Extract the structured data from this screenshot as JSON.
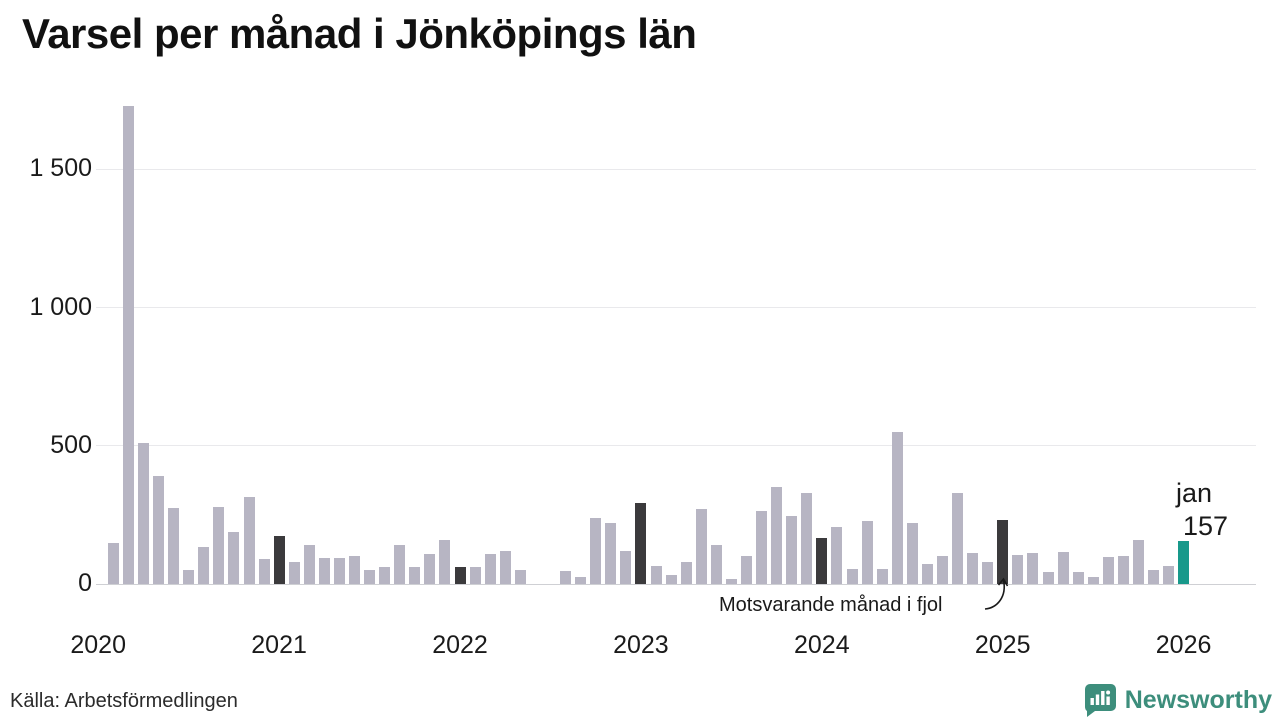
{
  "title": "Varsel per månad i Jönköpings län",
  "footer": {
    "source": "Källa: Arbetsförmedlingen"
  },
  "branding": {
    "name": "Newsworthy",
    "color": "#3d8e7c"
  },
  "annotation": {
    "text": "Motsvarande månad i fjol"
  },
  "last_point_label": {
    "line1": "jan",
    "line2": "157"
  },
  "colors": {
    "bar": "#b7b5c3",
    "bar_prev_jan": "#3b3a3c",
    "bar_current": "#18998b",
    "grid": "#e9e9ec",
    "axis": "#cfd0d4",
    "text": "#1a1a1a"
  },
  "chart_data": {
    "type": "bar",
    "title": "Varsel per månad i Jönköpings län",
    "xlabel": "",
    "ylabel": "",
    "ylim": [
      0,
      1750
    ],
    "grid": true,
    "yticks": [
      {
        "value": 0,
        "label": "0"
      },
      {
        "value": 500,
        "label": "500"
      },
      {
        "value": 1000,
        "label": "1 000"
      },
      {
        "value": 1500,
        "label": "1 500"
      }
    ],
    "x_axis_years": [
      {
        "label": "2020",
        "i": -1
      },
      {
        "label": "2021",
        "i": 11
      },
      {
        "label": "2022",
        "i": 23
      },
      {
        "label": "2023",
        "i": 35
      },
      {
        "label": "2024",
        "i": 47
      },
      {
        "label": "2025",
        "i": 59
      },
      {
        "label": "2026",
        "i": 71
      }
    ],
    "highlight_legend": "Motsvarande månad i fjol",
    "months": [
      {
        "m": "2020-02",
        "v": 150
      },
      {
        "m": "2020-03",
        "v": 1730
      },
      {
        "m": "2020-04",
        "v": 510
      },
      {
        "m": "2020-05",
        "v": 390
      },
      {
        "m": "2020-06",
        "v": 275
      },
      {
        "m": "2020-07",
        "v": 50
      },
      {
        "m": "2020-08",
        "v": 135
      },
      {
        "m": "2020-09",
        "v": 280
      },
      {
        "m": "2020-10",
        "v": 190
      },
      {
        "m": "2020-11",
        "v": 315
      },
      {
        "m": "2020-12",
        "v": 90
      },
      {
        "m": "2021-01",
        "v": 175,
        "hl": "dark"
      },
      {
        "m": "2021-02",
        "v": 80
      },
      {
        "m": "2021-03",
        "v": 140
      },
      {
        "m": "2021-04",
        "v": 95
      },
      {
        "m": "2021-05",
        "v": 95
      },
      {
        "m": "2021-06",
        "v": 100
      },
      {
        "m": "2021-07",
        "v": 50
      },
      {
        "m": "2021-08",
        "v": 60
      },
      {
        "m": "2021-09",
        "v": 140
      },
      {
        "m": "2021-10",
        "v": 60
      },
      {
        "m": "2021-11",
        "v": 110
      },
      {
        "m": "2021-12",
        "v": 160
      },
      {
        "m": "2022-01",
        "v": 60,
        "hl": "dark"
      },
      {
        "m": "2022-02",
        "v": 62
      },
      {
        "m": "2022-03",
        "v": 110
      },
      {
        "m": "2022-04",
        "v": 120
      },
      {
        "m": "2022-05",
        "v": 50
      },
      {
        "m": "2022-06",
        "v": 0
      },
      {
        "m": "2022-07",
        "v": 0
      },
      {
        "m": "2022-08",
        "v": 48
      },
      {
        "m": "2022-09",
        "v": 27
      },
      {
        "m": "2022-10",
        "v": 240
      },
      {
        "m": "2022-11",
        "v": 220
      },
      {
        "m": "2022-12",
        "v": 120
      },
      {
        "m": "2023-01",
        "v": 292,
        "hl": "dark"
      },
      {
        "m": "2023-02",
        "v": 65
      },
      {
        "m": "2023-03",
        "v": 33
      },
      {
        "m": "2023-04",
        "v": 80
      },
      {
        "m": "2023-05",
        "v": 272
      },
      {
        "m": "2023-06",
        "v": 140
      },
      {
        "m": "2023-07",
        "v": 17
      },
      {
        "m": "2023-08",
        "v": 100
      },
      {
        "m": "2023-09",
        "v": 265
      },
      {
        "m": "2023-10",
        "v": 350
      },
      {
        "m": "2023-11",
        "v": 245
      },
      {
        "m": "2023-12",
        "v": 330
      },
      {
        "m": "2024-01",
        "v": 167,
        "hl": "dark"
      },
      {
        "m": "2024-02",
        "v": 205
      },
      {
        "m": "2024-03",
        "v": 56
      },
      {
        "m": "2024-04",
        "v": 227
      },
      {
        "m": "2024-05",
        "v": 56
      },
      {
        "m": "2024-06",
        "v": 550
      },
      {
        "m": "2024-07",
        "v": 220
      },
      {
        "m": "2024-08",
        "v": 72
      },
      {
        "m": "2024-09",
        "v": 102
      },
      {
        "m": "2024-10",
        "v": 330
      },
      {
        "m": "2024-11",
        "v": 113
      },
      {
        "m": "2024-12",
        "v": 78
      },
      {
        "m": "2025-01",
        "v": 233,
        "hl": "dark"
      },
      {
        "m": "2025-02",
        "v": 104
      },
      {
        "m": "2025-03",
        "v": 113
      },
      {
        "m": "2025-04",
        "v": 42
      },
      {
        "m": "2025-05",
        "v": 117
      },
      {
        "m": "2025-06",
        "v": 45
      },
      {
        "m": "2025-07",
        "v": 26
      },
      {
        "m": "2025-08",
        "v": 98
      },
      {
        "m": "2025-09",
        "v": 102
      },
      {
        "m": "2025-10",
        "v": 158
      },
      {
        "m": "2025-11",
        "v": 50
      },
      {
        "m": "2025-12",
        "v": 66
      },
      {
        "m": "2026-01",
        "v": 157,
        "hl": "current"
      }
    ]
  }
}
